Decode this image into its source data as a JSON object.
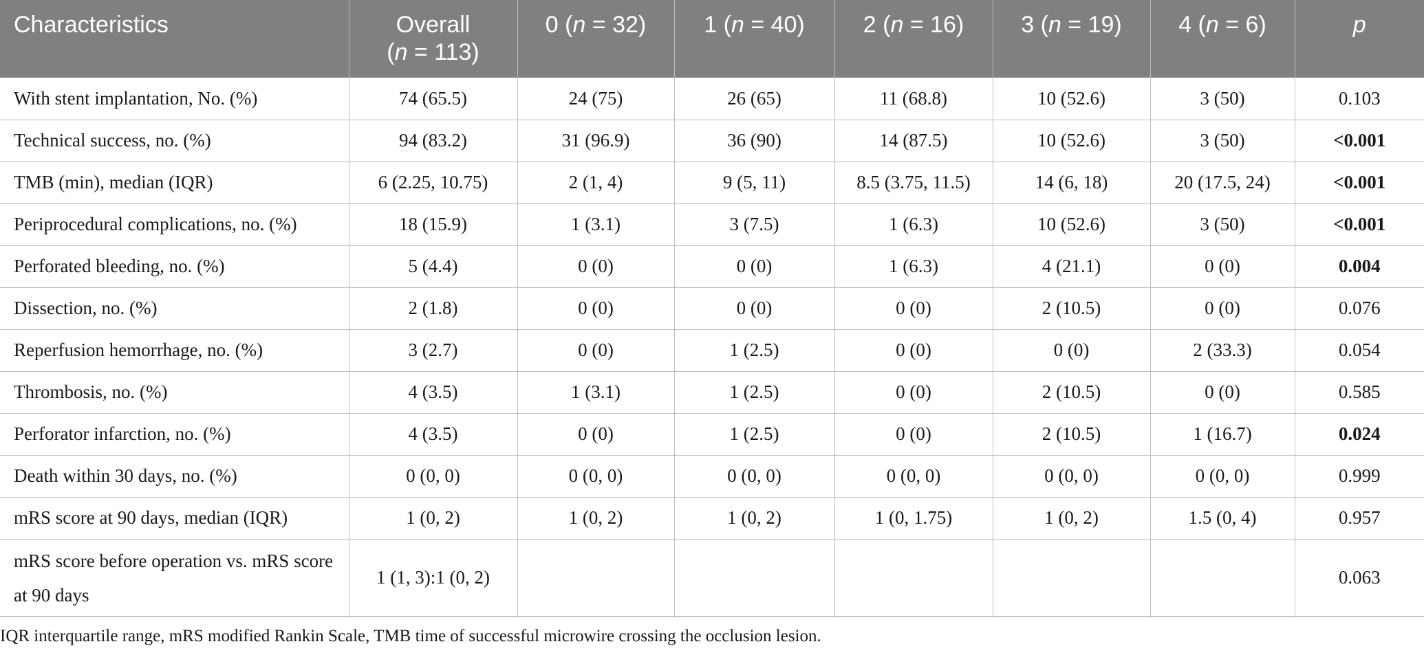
{
  "table": {
    "header": [
      {
        "label": "Characteristics",
        "line2": ""
      },
      {
        "label": "Overall",
        "line2_pre": "(",
        "line2_n": "n",
        "line2_post": " = 113)"
      },
      {
        "pre": "0 (",
        "n": "n",
        "post": " = 32)"
      },
      {
        "pre": "1 (",
        "n": "n",
        "post": " = 40)"
      },
      {
        "pre": "2 (",
        "n": "n",
        "post": " = 16)"
      },
      {
        "pre": "3 (",
        "n": "n",
        "post": " = 19)"
      },
      {
        "pre": "4 (",
        "n": "n",
        "post": " = 6)"
      },
      {
        "p": "p"
      }
    ],
    "rows": [
      {
        "label": "With stent implantation, No. (%)",
        "overall": "74 (65.5)",
        "g0": "24 (75)",
        "g1": "26 (65)",
        "g2": "11 (68.8)",
        "g3": "10 (52.6)",
        "g4": "3 (50)",
        "p": "0.103",
        "p_bold": false
      },
      {
        "label": "Technical success, no. (%)",
        "overall": "94 (83.2)",
        "g0": "31 (96.9)",
        "g1": "36 (90)",
        "g2": "14 (87.5)",
        "g3": "10 (52.6)",
        "g4": "3 (50)",
        "p": "<0.001",
        "p_bold": true
      },
      {
        "label": "TMB (min), median (IQR)",
        "overall": "6 (2.25, 10.75)",
        "g0": "2 (1, 4)",
        "g1": "9 (5, 11)",
        "g2": "8.5 (3.75, 11.5)",
        "g3": "14 (6, 18)",
        "g4": "20 (17.5, 24)",
        "p": "<0.001",
        "p_bold": true
      },
      {
        "label": "Periprocedural complications, no. (%)",
        "overall": "18 (15.9)",
        "g0": "1 (3.1)",
        "g1": "3 (7.5)",
        "g2": "1 (6.3)",
        "g3": "10 (52.6)",
        "g4": "3 (50)",
        "p": "<0.001",
        "p_bold": true
      },
      {
        "label": "Perforated bleeding, no. (%)",
        "overall": "5 (4.4)",
        "g0": "0 (0)",
        "g1": "0 (0)",
        "g2": "1 (6.3)",
        "g3": "4 (21.1)",
        "g4": "0 (0)",
        "p": "0.004",
        "p_bold": true
      },
      {
        "label": "Dissection, no. (%)",
        "overall": "2 (1.8)",
        "g0": "0 (0)",
        "g1": "0 (0)",
        "g2": "0 (0)",
        "g3": "2 (10.5)",
        "g4": "0 (0)",
        "p": "0.076",
        "p_bold": false
      },
      {
        "label": "Reperfusion hemorrhage, no. (%)",
        "overall": "3 (2.7)",
        "g0": "0 (0)",
        "g1": "1 (2.5)",
        "g2": "0 (0)",
        "g3": "0 (0)",
        "g4": "2 (33.3)",
        "p": "0.054",
        "p_bold": false
      },
      {
        "label": "Thrombosis, no. (%)",
        "overall": "4 (3.5)",
        "g0": "1 (3.1)",
        "g1": "1 (2.5)",
        "g2": "0 (0)",
        "g3": "2 (10.5)",
        "g4": "0 (0)",
        "p": "0.585",
        "p_bold": false
      },
      {
        "label": "Perforator infarction, no. (%)",
        "overall": "4 (3.5)",
        "g0": "0 (0)",
        "g1": "1 (2.5)",
        "g2": "0 (0)",
        "g3": "2 (10.5)",
        "g4": "1 (16.7)",
        "p": "0.024",
        "p_bold": true
      },
      {
        "label": "Death within 30 days, no. (%)",
        "overall": "0 (0, 0)",
        "g0": "0 (0, 0)",
        "g1": "0 (0, 0)",
        "g2": "0 (0, 0)",
        "g3": "0 (0, 0)",
        "g4": "0 (0, 0)",
        "p": "0.999",
        "p_bold": false
      },
      {
        "label": "mRS score at 90 days, median (IQR)",
        "overall": "1 (0, 2)",
        "g0": "1 (0, 2)",
        "g1": "1 (0, 2)",
        "g2": "1 (0, 1.75)",
        "g3": "1 (0, 2)",
        "g4": "1.5 (0, 4)",
        "p": "0.957",
        "p_bold": false
      },
      {
        "label": "mRS score before operation vs. mRS score at 90 days",
        "overall": "1 (1, 3):1 (0, 2)",
        "g0": "",
        "g1": "",
        "g2": "",
        "g3": "",
        "g4": "",
        "p": "0.063",
        "p_bold": false,
        "tall": true
      }
    ]
  },
  "footnote": "IQR interquartile range, mRS modified Rankin Scale, TMB time of successful microwire crossing the occlusion lesion."
}
